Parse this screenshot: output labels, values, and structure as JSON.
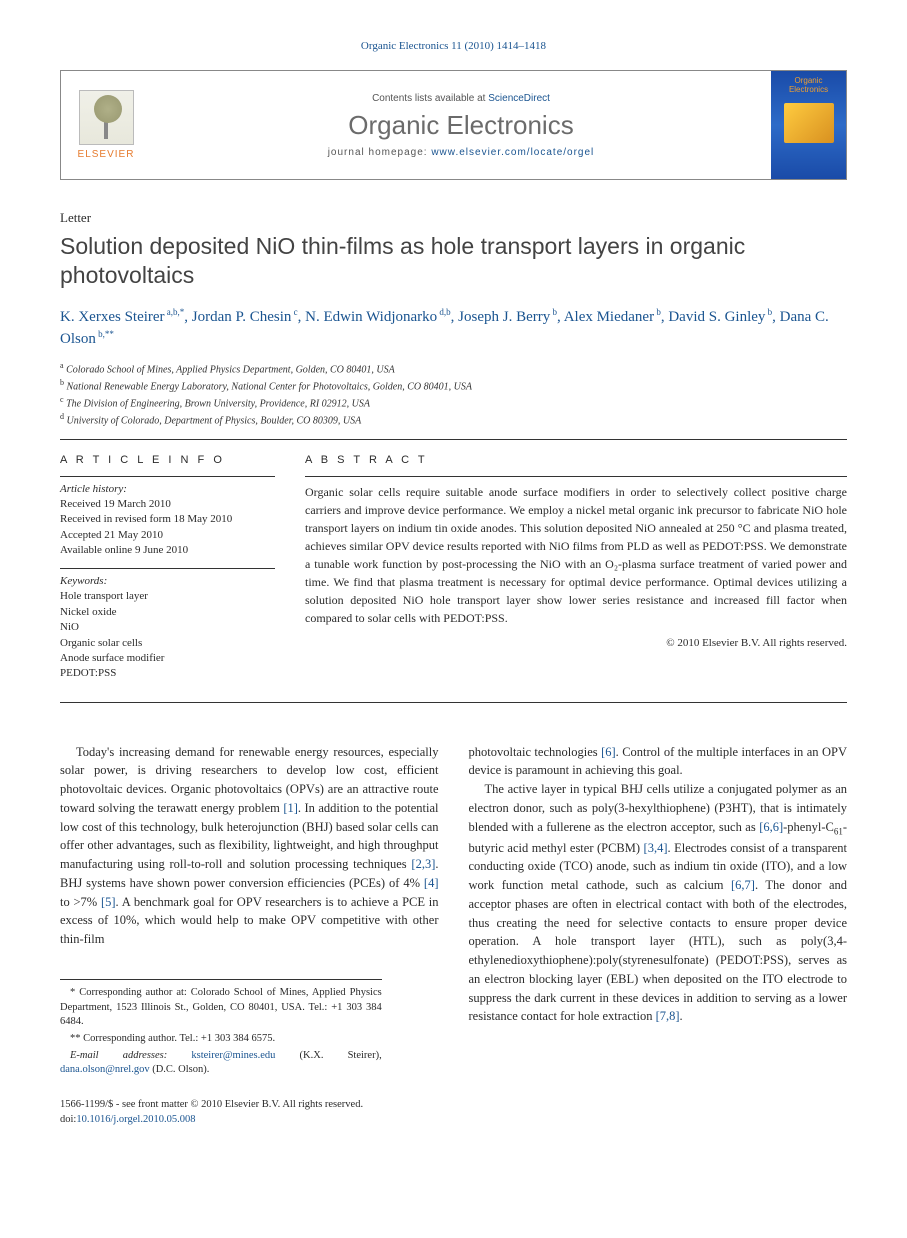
{
  "journal_ref": "Organic Electronics 11 (2010) 1414–1418",
  "header": {
    "contents_line_prefix": "Contents lists available at ",
    "contents_line_link": "ScienceDirect",
    "journal_title": "Organic Electronics",
    "homepage_prefix": "journal homepage: ",
    "homepage_url": "www.elsevier.com/locate/orgel",
    "elsevier_label": "ELSEVIER",
    "cover_title": "Organic Electronics"
  },
  "article_type": "Letter",
  "title": "Solution deposited NiO thin-films as hole transport layers in organic photovoltaics",
  "authors": [
    {
      "name": "K. Xerxes Steirer",
      "aff": "a,b,*"
    },
    {
      "name": "Jordan P. Chesin",
      "aff": "c"
    },
    {
      "name": "N. Edwin Widjonarko",
      "aff": "d,b"
    },
    {
      "name": "Joseph J. Berry",
      "aff": "b"
    },
    {
      "name": "Alex Miedaner",
      "aff": "b"
    },
    {
      "name": "David S. Ginley",
      "aff": "b"
    },
    {
      "name": "Dana C. Olson",
      "aff": "b,**"
    }
  ],
  "affiliations": [
    {
      "sup": "a",
      "text": "Colorado School of Mines, Applied Physics Department, Golden, CO 80401, USA"
    },
    {
      "sup": "b",
      "text": "National Renewable Energy Laboratory, National Center for Photovoltaics, Golden, CO 80401, USA"
    },
    {
      "sup": "c",
      "text": "The Division of Engineering, Brown University, Providence, RI 02912, USA"
    },
    {
      "sup": "d",
      "text": "University of Colorado, Department of Physics, Boulder, CO 80309, USA"
    }
  ],
  "article_info_heading": "A R T I C L E   I N F O",
  "abstract_heading": "A B S T R A C T",
  "history_label": "Article history:",
  "history": [
    "Received 19 March 2010",
    "Received in revised form 18 May 2010",
    "Accepted 21 May 2010",
    "Available online 9 June 2010"
  ],
  "keywords_label": "Keywords:",
  "keywords": [
    "Hole transport layer",
    "Nickel oxide",
    "NiO",
    "Organic solar cells",
    "Anode surface modifier",
    "PEDOT:PSS"
  ],
  "abstract": "Organic solar cells require suitable anode surface modifiers in order to selectively collect positive charge carriers and improve device performance. We employ a nickel metal organic ink precursor to fabricate NiO hole transport layers on indium tin oxide anodes. This solution deposited NiO annealed at 250 °C and plasma treated, achieves similar OPV device results reported with NiO films from PLD as well as PEDOT:PSS. We demonstrate a tunable work function by post-processing the NiO with an O₂-plasma surface treatment of varied power and time. We find that plasma treatment is necessary for optimal device performance. Optimal devices utilizing a solution deposited NiO hole transport layer show lower series resistance and increased fill factor when compared to solar cells with PEDOT:PSS.",
  "copyright": "© 2010 Elsevier B.V. All rights reserved.",
  "body": {
    "col1_p1": "Today's increasing demand for renewable energy resources, especially solar power, is driving researchers to develop low cost, efficient photovoltaic devices. Organic photovoltaics (OPVs) are an attractive route toward solving the terawatt energy problem [1]. In addition to the potential low cost of this technology, bulk heterojunction (BHJ) based solar cells can offer other advantages, such as flexibility, lightweight, and high throughput manufacturing using roll-to-roll and solution processing techniques [2,3]. BHJ systems have shown power conversion efficiencies (PCEs) of 4% [4] to >7% [5]. A benchmark goal for OPV researchers is to achieve a PCE in excess of 10%, which would help to make OPV competitive with other thin-film",
    "col2_p1": "photovoltaic technologies [6]. Control of the multiple interfaces in an OPV device is paramount in achieving this goal.",
    "col2_p2": "The active layer in typical BHJ cells utilize a conjugated polymer as an electron donor, such as poly(3-hexylthiophene) (P3HT), that is intimately blended with a fullerene as the electron acceptor, such as [6,6]-phenyl-C₆₁-butyric acid methyl ester (PCBM) [3,4]. Electrodes consist of a transparent conducting oxide (TCO) anode, such as indium tin oxide (ITO), and a low work function metal cathode, such as calcium [6,7]. The donor and acceptor phases are often in electrical contact with both of the electrodes, thus creating the need for selective contacts to ensure proper device operation. A hole transport layer (HTL), such as poly(3,4-ethylenedioxythiophene):poly(styrenesulfonate) (PEDOT:PSS), serves as an electron blocking layer (EBL) when deposited on the ITO electrode to suppress the dark current in these devices in addition to serving as a lower resistance contact for hole extraction [7,8]."
  },
  "footnotes": {
    "corr1": "* Corresponding author at: Colorado School of Mines, Applied Physics Department, 1523 Illinois St., Golden, CO 80401, USA. Tel.: +1 303 384 6484.",
    "corr2": "** Corresponding author. Tel.: +1 303 384 6575.",
    "email_label": "E-mail addresses: ",
    "email1": "ksteirer@mines.edu",
    "email1_name": " (K.X. Steirer), ",
    "email2": "dana.olson@nrel.gov",
    "email2_name": " (D.C. Olson)."
  },
  "footer": {
    "issn_line": "1566-1199/$ - see front matter © 2010 Elsevier B.V. All rights reserved.",
    "doi_prefix": "doi:",
    "doi": "10.1016/j.orgel.2010.05.008"
  },
  "colors": {
    "link": "#1a5490",
    "text": "#2a2a2a",
    "title_gray": "#6b6b6b",
    "elsevier_orange": "#e67b2e",
    "cover_bg": "#1a4ba8",
    "cover_accent": "#f0a030"
  }
}
